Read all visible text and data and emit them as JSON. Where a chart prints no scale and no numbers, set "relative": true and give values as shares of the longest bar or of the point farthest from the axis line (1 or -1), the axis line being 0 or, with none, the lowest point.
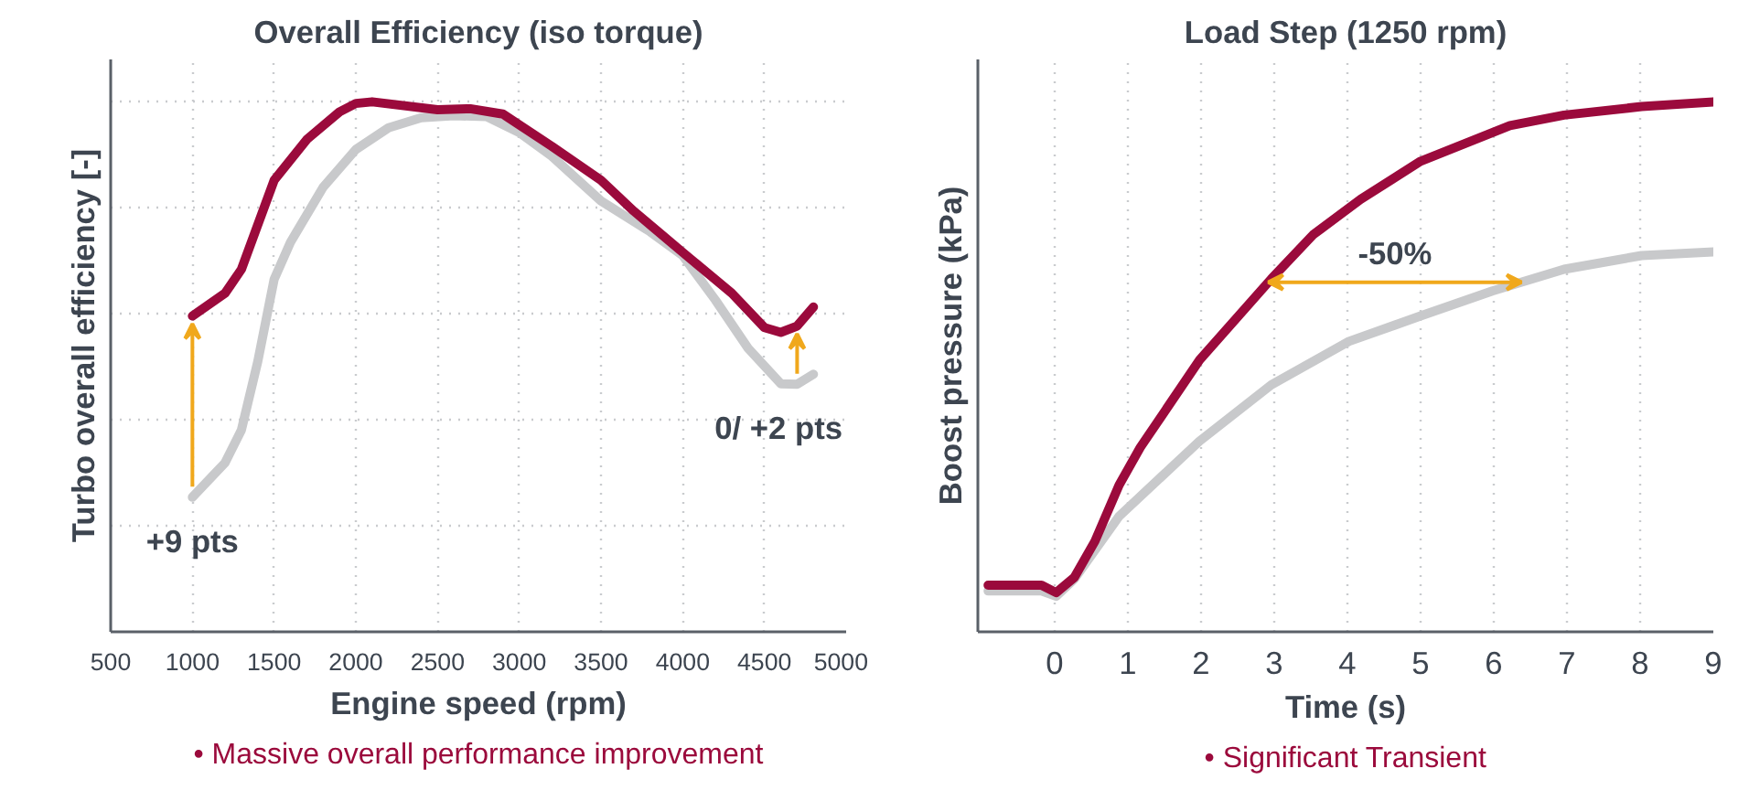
{
  "chart_data": [
    {
      "type": "line",
      "title": "Overall Efficiency (iso torque)",
      "xlabel": "Engine speed (rpm)",
      "ylabel": "Turbo overall efficiency [-]",
      "relative": true,
      "grid": true,
      "xlim": [
        500,
        5000
      ],
      "xticks": [
        500,
        1000,
        1500,
        2000,
        2500,
        3000,
        3500,
        4000,
        4500,
        5000
      ],
      "series": [
        {
          "color": "#c8c9cb",
          "x": [
            1000,
            1200,
            1300,
            1400,
            1500,
            1600,
            1800,
            2000,
            2200,
            2400,
            2600,
            2800,
            3000,
            3200,
            3500,
            3800,
            4000,
            4200,
            4400,
            4600,
            4700,
            4800
          ],
          "values": [
            0.254,
            0.319,
            0.381,
            0.51,
            0.665,
            0.735,
            0.839,
            0.91,
            0.951,
            0.97,
            0.974,
            0.972,
            0.942,
            0.897,
            0.813,
            0.755,
            0.71,
            0.626,
            0.535,
            0.468,
            0.467,
            0.486
          ]
        },
        {
          "color": "#9b0a3c",
          "x": [
            1000,
            1200,
            1300,
            1500,
            1700,
            1900,
            2000,
            2100,
            2500,
            2700,
            2900,
            3200,
            3500,
            3700,
            4000,
            4300,
            4500,
            4600,
            4700,
            4800
          ],
          "values": [
            0.596,
            0.639,
            0.684,
            0.852,
            0.929,
            0.981,
            0.997,
            1.0,
            0.985,
            0.987,
            0.977,
            0.916,
            0.852,
            0.794,
            0.716,
            0.639,
            0.574,
            0.565,
            0.577,
            0.613
          ]
        }
      ],
      "annotations": [
        "+9 pts",
        "0/ +2 pts",
        "• Massive overall performance improvement"
      ]
    },
    {
      "type": "line",
      "title": "Load Step (1250 rpm)",
      "xlabel": "Time (s)",
      "ylabel": "Boost pressure (kPa)",
      "relative": true,
      "grid": "x",
      "xlim": [
        -1.05,
        9
      ],
      "xticks": [
        0,
        1,
        2,
        3,
        4,
        5,
        6,
        7,
        8,
        9
      ],
      "series": [
        {
          "color": "#c8c9cb",
          "x": [
            -0.91,
            -0.18,
            0.02,
            0.27,
            0.88,
            1.98,
            2.96,
            4.02,
            5.0,
            5.98,
            6.96,
            8.02,
            9.0
          ],
          "values": [
            0.077,
            0.077,
            0.067,
            0.1,
            0.218,
            0.36,
            0.466,
            0.548,
            0.596,
            0.643,
            0.684,
            0.71,
            0.717
          ]
        },
        {
          "color": "#9b0a3c",
          "x": [
            -0.91,
            -0.18,
            0.02,
            0.27,
            0.55,
            0.88,
            1.17,
            1.98,
            2.96,
            3.53,
            4.18,
            5.0,
            6.22,
            6.96,
            8.02,
            9.0
          ],
          "values": [
            0.088,
            0.088,
            0.074,
            0.103,
            0.171,
            0.277,
            0.348,
            0.513,
            0.666,
            0.749,
            0.816,
            0.888,
            0.955,
            0.975,
            0.991,
            1.0
          ]
        }
      ],
      "annotations": [
        "-50%",
        "• Significant Transient"
      ]
    }
  ]
}
